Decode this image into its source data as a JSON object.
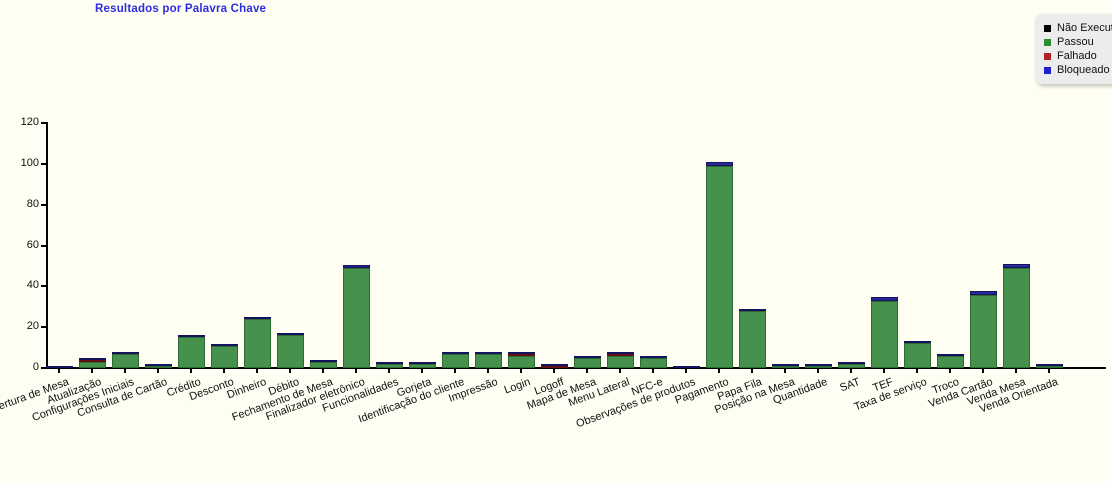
{
  "title": {
    "text": "Resultados por Palavra Chave",
    "color": "#2d2de0"
  },
  "legend": {
    "items": [
      {
        "label": "Não Executado",
        "color": "#000000"
      },
      {
        "label": "Passou",
        "color": "#2e8b2e"
      },
      {
        "label": "Falhado",
        "color": "#b22222"
      },
      {
        "label": "Bloqueado",
        "color": "#2121cc"
      }
    ]
  },
  "chart_data": {
    "type": "bar",
    "stacked": true,
    "title": "Resultados por Palavra Chave",
    "xlabel": "",
    "ylabel": "",
    "ylim": [
      0,
      120
    ],
    "yticks": [
      0,
      20,
      40,
      60,
      80,
      100,
      120
    ],
    "grid": false,
    "legend_position": "top-right",
    "categories": [
      "Abertura de Mesa",
      "Atualização",
      "Configurações Iniciais",
      "Consulta de Cartão",
      "Crédito",
      "Desconto",
      "Dinheiro",
      "Débito",
      "Fechamento de Mesa",
      "Finalizador eletrônico",
      "Funcionalidades",
      "Gorjeta",
      "Identificação do cliente",
      "Impressão",
      "Login",
      "Logoff",
      "Mapa de Mesa",
      "Menu Lateral",
      "NFC-e",
      "Observações de produtos",
      "Pagamento",
      "Papa Fila",
      "Posição na Mesa",
      "Quantidade",
      "SAT",
      "TEF",
      "Taxa de serviço",
      "Troco",
      "Venda Cartão",
      "Venda Mesa",
      "Venda Orientada"
    ],
    "series": [
      {
        "name": "Não Executado",
        "color": "#111111",
        "border": "#000000",
        "values": [
          0,
          0,
          0,
          0,
          0,
          0,
          0,
          0,
          0,
          0,
          0,
          0,
          0,
          0,
          0,
          0,
          0,
          0,
          0,
          0,
          0,
          0,
          0,
          0,
          0,
          0,
          0,
          0,
          0,
          0,
          0
        ]
      },
      {
        "name": "Passou",
        "color": "#46914B",
        "border": "#2e6b32",
        "values": [
          0,
          3,
          7,
          1,
          15,
          11,
          24,
          16,
          3,
          49,
          2,
          2,
          7,
          7,
          6,
          0,
          5,
          6,
          5,
          0,
          99,
          28,
          1,
          1,
          2,
          33,
          12,
          6,
          36,
          49,
          1
        ]
      },
      {
        "name": "Falhado",
        "color": "#A02424",
        "border": "#611111",
        "values": [
          0,
          1,
          0,
          0,
          0,
          0,
          0,
          0,
          0,
          0,
          0,
          0,
          0,
          0,
          1,
          1,
          0,
          1,
          0,
          0,
          0,
          0,
          0,
          0,
          0,
          0,
          0,
          0,
          0,
          0,
          0
        ]
      },
      {
        "name": "Bloqueado",
        "color": "#28289A",
        "border": "#14145e",
        "values": [
          1,
          1,
          1,
          1,
          1,
          1,
          1,
          1,
          1,
          1.5,
          1,
          1,
          1,
          1,
          1,
          1,
          1,
          1,
          1,
          1,
          2,
          1,
          1,
          1,
          1,
          2,
          1,
          1,
          1.5,
          2,
          1
        ]
      }
    ]
  }
}
